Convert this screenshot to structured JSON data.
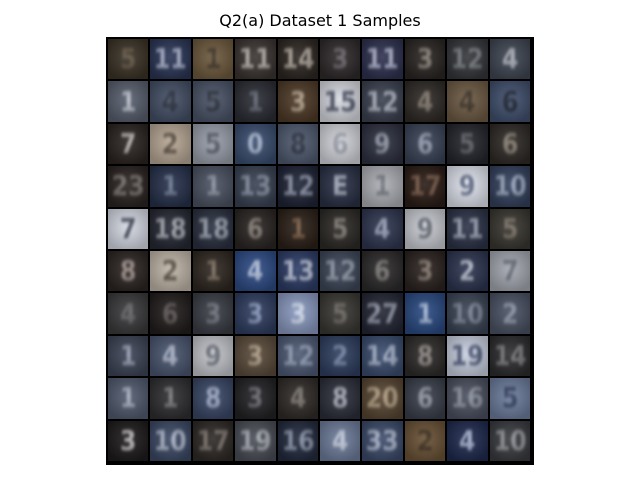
{
  "figure": {
    "title": "Q2(a) Dataset 1 Samples"
  },
  "tiles": [
    {
      "bg": "#3a3226",
      "fg": "#6d5d4a",
      "glyph": "5"
    },
    {
      "bg": "#2b3656",
      "fg": "#c9d1ea",
      "glyph": "11"
    },
    {
      "bg": "#6e5a3e",
      "fg": "#2f271c",
      "glyph": "1"
    },
    {
      "bg": "#3b3431",
      "fg": "#d6d1cb",
      "glyph": "11"
    },
    {
      "bg": "#2d2722",
      "fg": "#cfc6bb",
      "glyph": "14"
    },
    {
      "bg": "#2f2a2b",
      "fg": "#77737a",
      "glyph": "3"
    },
    {
      "bg": "#2e3150",
      "fg": "#cfd4ea",
      "glyph": "11"
    },
    {
      "bg": "#2a2523",
      "fg": "#9d9588",
      "glyph": "3"
    },
    {
      "bg": "#34363a",
      "fg": "#8b8f95",
      "glyph": "12"
    },
    {
      "bg": "#3f4652",
      "fg": "#c4c8d1",
      "glyph": "4"
    },
    {
      "bg": "#585f6e",
      "fg": "#d0d5df",
      "glyph": "1"
    },
    {
      "bg": "#445066",
      "fg": "#1e2330",
      "glyph": "4"
    },
    {
      "bg": "#4a5468",
      "fg": "#20252e",
      "glyph": "5"
    },
    {
      "bg": "#2b2d35",
      "fg": "#6d7280",
      "glyph": "1"
    },
    {
      "bg": "#4e3a27",
      "fg": "#c9b9a4",
      "glyph": "3"
    },
    {
      "bg": "#d8dae2",
      "fg": "#2a3046",
      "glyph": "15"
    },
    {
      "bg": "#3b4150",
      "fg": "#c9cfdb",
      "glyph": "12"
    },
    {
      "bg": "#2f2a26",
      "fg": "#948b7e",
      "glyph": "4"
    },
    {
      "bg": "#6d5a44",
      "fg": "#2a231a",
      "glyph": "4"
    },
    {
      "bg": "#41506d",
      "fg": "#0f1420",
      "glyph": "6"
    },
    {
      "bg": "#2b2421",
      "fg": "#d7d2cf",
      "glyph": "7"
    },
    {
      "bg": "#b8a896",
      "fg": "#3d3327",
      "glyph": "2"
    },
    {
      "bg": "#9aa0ac",
      "fg": "#3f4552",
      "glyph": "5"
    },
    {
      "bg": "#3a4e70",
      "fg": "#c8d3e8",
      "glyph": "0"
    },
    {
      "bg": "#505b70",
      "fg": "#1e2432",
      "glyph": "8"
    },
    {
      "bg": "#d3d5dc",
      "fg": "#8b8f9b",
      "glyph": "6"
    },
    {
      "bg": "#2d3040",
      "fg": "#a8adbc",
      "glyph": "9"
    },
    {
      "bg": "#3a4356",
      "fg": "#a9b1c4",
      "glyph": "6"
    },
    {
      "bg": "#24262c",
      "fg": "#6a6d75",
      "glyph": "5"
    },
    {
      "bg": "#2f2a26",
      "fg": "#9c9386",
      "glyph": "6"
    },
    {
      "bg": "#2a2422",
      "fg": "#8e8580",
      "glyph": "23"
    },
    {
      "bg": "#26314b",
      "fg": "#7d8aa6",
      "glyph": "1"
    },
    {
      "bg": "#4b5262",
      "fg": "#9aa0ae",
      "glyph": "1"
    },
    {
      "bg": "#394253",
      "fg": "#9aa3b6",
      "glyph": "13"
    },
    {
      "bg": "#1f2436",
      "fg": "#aab1c6",
      "glyph": "12"
    },
    {
      "bg": "#2a3146",
      "fg": "#c3c9d8",
      "glyph": "E"
    },
    {
      "bg": "#aeb0b6",
      "fg": "#5f636c",
      "glyph": "1"
    },
    {
      "bg": "#2b1c16",
      "fg": "#8d6b55",
      "glyph": "17"
    },
    {
      "bg": "#e0e4ee",
      "fg": "#3a4768",
      "glyph": "9"
    },
    {
      "bg": "#33415d",
      "fg": "#b5c0d6",
      "glyph": "10"
    },
    {
      "bg": "#d6dae4",
      "fg": "#1b2033",
      "glyph": "7"
    },
    {
      "bg": "#262934",
      "fg": "#c7c9d2",
      "glyph": "18"
    },
    {
      "bg": "#2a3040",
      "fg": "#b7bdcc",
      "glyph": "18"
    },
    {
      "bg": "#2a2523",
      "fg": "#9a9086",
      "glyph": "6"
    },
    {
      "bg": "#2b2018",
      "fg": "#8d6a4d",
      "glyph": "1"
    },
    {
      "bg": "#2d2a27",
      "fg": "#948d86",
      "glyph": "5"
    },
    {
      "bg": "#2f3650",
      "fg": "#b2bbd3",
      "glyph": "4"
    },
    {
      "bg": "#c9ccd3",
      "fg": "#4a4f5a",
      "glyph": "9"
    },
    {
      "bg": "#2c3347",
      "fg": "#b9c0d1",
      "glyph": "11"
    },
    {
      "bg": "#3a3731",
      "fg": "#887f72",
      "glyph": "5"
    },
    {
      "bg": "#2c2523",
      "fg": "#b7aaa3",
      "glyph": "8"
    },
    {
      "bg": "#c0b6a8",
      "fg": "#3b3228",
      "glyph": "2"
    },
    {
      "bg": "#2f2721",
      "fg": "#8c7e6c",
      "glyph": "1"
    },
    {
      "bg": "#2e4c86",
      "fg": "#d8e0f1",
      "glyph": "4"
    },
    {
      "bg": "#2d3c66",
      "fg": "#dfe5f3",
      "glyph": "13"
    },
    {
      "bg": "#3d4658",
      "fg": "#a9b0c0",
      "glyph": "12"
    },
    {
      "bg": "#2c2a2a",
      "fg": "#8e8a88",
      "glyph": "6"
    },
    {
      "bg": "#2b2320",
      "fg": "#9a8d80",
      "glyph": "3"
    },
    {
      "bg": "#2d3550",
      "fg": "#d9deea",
      "glyph": "2"
    },
    {
      "bg": "#a4a8b1",
      "fg": "#535966",
      "glyph": "7"
    },
    {
      "bg": "#3a3a3c",
      "fg": "#6f6e70",
      "glyph": "4"
    },
    {
      "bg": "#211d1c",
      "fg": "#6a6260",
      "glyph": "6"
    },
    {
      "bg": "#3a3d45",
      "fg": "#7b808c",
      "glyph": "3"
    },
    {
      "bg": "#2f3d60",
      "fg": "#9fadd0",
      "glyph": "3"
    },
    {
      "bg": "#8a9ac0",
      "fg": "#e6ecf7",
      "glyph": "3"
    },
    {
      "bg": "#3a3834",
      "fg": "#77726a",
      "glyph": "5"
    },
    {
      "bg": "#232634",
      "fg": "#aab0c2",
      "glyph": "27"
    },
    {
      "bg": "#2a4a82",
      "fg": "#c6d3ec",
      "glyph": "1"
    },
    {
      "bg": "#3b4455",
      "fg": "#8c95a7",
      "glyph": "10"
    },
    {
      "bg": "#4a5264",
      "fg": "#9ea6b7",
      "glyph": "2"
    },
    {
      "bg": "#3d4456",
      "fg": "#a8b0c3",
      "glyph": "1"
    },
    {
      "bg": "#4a5670",
      "fg": "#c2cadb",
      "glyph": "4"
    },
    {
      "bg": "#c4c6cc",
      "fg": "#505560",
      "glyph": "9"
    },
    {
      "bg": "#5a4b3b",
      "fg": "#c4b29a",
      "glyph": "3"
    },
    {
      "bg": "#4e5a74",
      "fg": "#a7b2c9",
      "glyph": "12"
    },
    {
      "bg": "#2f3f60",
      "fg": "#8797b8",
      "glyph": "2"
    },
    {
      "bg": "#3a4c6e",
      "fg": "#c3cde1",
      "glyph": "14"
    },
    {
      "bg": "#2e2b2a",
      "fg": "#a49d99",
      "glyph": "8"
    },
    {
      "bg": "#c9d0e0",
      "fg": "#2d3a5e",
      "glyph": "19"
    },
    {
      "bg": "#2d2c2e",
      "fg": "#8f8d90",
      "glyph": "14"
    },
    {
      "bg": "#515b6f",
      "fg": "#b9c1d2",
      "glyph": "1"
    },
    {
      "bg": "#2f2e31",
      "fg": "#8b898c",
      "glyph": "1"
    },
    {
      "bg": "#394766",
      "fg": "#b8c3dc",
      "glyph": "8"
    },
    {
      "bg": "#222226",
      "fg": "#7b7b81",
      "glyph": "3"
    },
    {
      "bg": "#2f2b28",
      "fg": "#8e8780",
      "glyph": "4"
    },
    {
      "bg": "#2c2f3b",
      "fg": "#c7cbd6",
      "glyph": "8"
    },
    {
      "bg": "#574633",
      "fg": "#c8b597",
      "glyph": "20"
    },
    {
      "bg": "#3a3f4b",
      "fg": "#a5abb8",
      "glyph": "6"
    },
    {
      "bg": "#4b5060",
      "fg": "#9fa5b3",
      "glyph": "16"
    },
    {
      "bg": "#6d7d9d",
      "fg": "#1f2c4a",
      "glyph": "5"
    },
    {
      "bg": "#1e1b1c",
      "fg": "#e4e0e0",
      "glyph": "3"
    },
    {
      "bg": "#3c4965",
      "fg": "#c8d0e2",
      "glyph": "10"
    },
    {
      "bg": "#2e2926",
      "fg": "#8f857d",
      "glyph": "17"
    },
    {
      "bg": "#4a4e57",
      "fg": "#bfc3cb",
      "glyph": "19"
    },
    {
      "bg": "#222a3d",
      "fg": "#a3aec6",
      "glyph": "16"
    },
    {
      "bg": "#6e7d9b",
      "fg": "#d9dfec",
      "glyph": "4"
    },
    {
      "bg": "#3c4a6a",
      "fg": "#c7d0e4",
      "glyph": "33"
    },
    {
      "bg": "#6a5236",
      "fg": "#2d2216",
      "glyph": "2"
    },
    {
      "bg": "#1f2a4e",
      "fg": "#c9d3ec",
      "glyph": "4"
    },
    {
      "bg": "#3a3b40",
      "fg": "#a9aab0",
      "glyph": "10"
    }
  ]
}
